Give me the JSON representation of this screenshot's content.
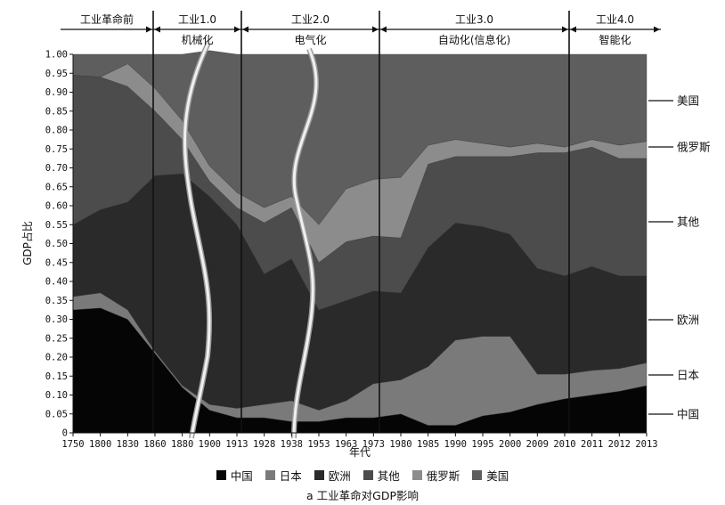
{
  "chart_data": {
    "type": "area",
    "stacked": true,
    "ylabel": "GDP占比",
    "xlabel": "年代",
    "ylim": [
      0,
      1
    ],
    "yticks": [
      "0",
      "0.05",
      "0.10",
      "0.15",
      "0.20",
      "0.25",
      "0.30",
      "0.35",
      "0.40",
      "0.45",
      "0.50",
      "0.55",
      "0.60",
      "0.65",
      "0.70",
      "0.75",
      "0.80",
      "0.85",
      "0.90",
      "0.95",
      "1.00"
    ],
    "categories": [
      "1750",
      "1800",
      "1830",
      "1860",
      "1880",
      "1900",
      "1913",
      "1928",
      "1938",
      "1953",
      "1963",
      "1973",
      "1980",
      "1985",
      "1990",
      "1995",
      "2000",
      "2009",
      "2010",
      "2011",
      "2012",
      "2013"
    ],
    "series": [
      {
        "name": "中国",
        "color": "#050505",
        "values": [
          0.325,
          0.33,
          0.3,
          0.21,
          0.12,
          0.06,
          0.04,
          0.04,
          0.03,
          0.03,
          0.04,
          0.04,
          0.05,
          0.02,
          0.02,
          0.045,
          0.055,
          0.075,
          0.09,
          0.1,
          0.11,
          0.125
        ]
      },
      {
        "name": "日本",
        "color": "#7a7a7a",
        "values": [
          0.035,
          0.04,
          0.025,
          0.005,
          0.005,
          0.015,
          0.025,
          0.035,
          0.055,
          0.03,
          0.045,
          0.09,
          0.09,
          0.155,
          0.225,
          0.21,
          0.2,
          0.08,
          0.065,
          0.065,
          0.06,
          0.06
        ]
      },
      {
        "name": "欧洲",
        "color": "#2a2a2a",
        "values": [
          0.19,
          0.22,
          0.285,
          0.465,
          0.56,
          0.55,
          0.485,
          0.345,
          0.375,
          0.265,
          0.265,
          0.245,
          0.23,
          0.315,
          0.31,
          0.29,
          0.27,
          0.28,
          0.26,
          0.275,
          0.245,
          0.23
        ]
      },
      {
        "name": "其他",
        "color": "#4c4c4c",
        "values": [
          0.395,
          0.35,
          0.305,
          0.17,
          0.09,
          0.04,
          0.045,
          0.135,
          0.135,
          0.125,
          0.155,
          0.145,
          0.145,
          0.22,
          0.175,
          0.185,
          0.205,
          0.305,
          0.325,
          0.315,
          0.31,
          0.31
        ]
      },
      {
        "name": "俄罗斯",
        "color": "#8c8c8c",
        "values": [
          0.0,
          0.0,
          0.06,
          0.06,
          0.05,
          0.04,
          0.04,
          0.04,
          0.03,
          0.1,
          0.14,
          0.15,
          0.16,
          0.05,
          0.045,
          0.035,
          0.025,
          0.025,
          0.015,
          0.02,
          0.035,
          0.045
        ]
      },
      {
        "name": "美国",
        "color": "#5e5e5e",
        "values": [
          0.055,
          0.06,
          0.025,
          0.09,
          0.175,
          0.305,
          0.365,
          0.405,
          0.375,
          0.45,
          0.355,
          0.33,
          0.325,
          0.24,
          0.225,
          0.235,
          0.245,
          0.235,
          0.245,
          0.225,
          0.24,
          0.23
        ]
      }
    ],
    "eras": [
      {
        "top": "工业革命前",
        "sub": ""
      },
      {
        "top": "工业1.0",
        "sub": "机械化"
      },
      {
        "top": "工业2.0",
        "sub": "电气化"
      },
      {
        "top": "工业3.0",
        "sub": "自动化(信息化)"
      },
      {
        "top": "工业4.0",
        "sub": "智能化"
      }
    ],
    "side_labels": [
      "美国",
      "俄罗斯",
      "其他",
      "欧洲",
      "日本",
      "中国"
    ]
  },
  "legend": [
    "中国",
    "日本",
    "欧洲",
    "其他",
    "俄罗斯",
    "美国"
  ],
  "caption": "a  工业革命对GDP影响"
}
